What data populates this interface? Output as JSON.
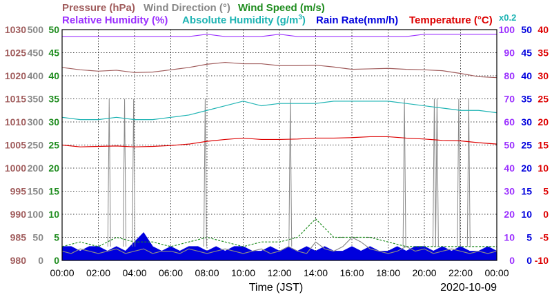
{
  "chart_data": {
    "type": "line",
    "date": "2020-10-09",
    "xlabel": "Time (JST)",
    "x_ticks": [
      "00:00",
      "02:00",
      "04:00",
      "06:00",
      "08:00",
      "10:00",
      "12:00",
      "14:00",
      "16:00",
      "18:00",
      "20:00",
      "22:00",
      "00:00"
    ],
    "grid": true,
    "legend": {
      "pressure": {
        "name": "Pressure (hPa)",
        "color": "#a05c5c"
      },
      "wind_direction": {
        "name": "Wind Direction (°)",
        "color": "#888888"
      },
      "wind_speed": {
        "name": "Wind Speed (m/s)",
        "color": "#1e8c1e"
      },
      "relative_humidity": {
        "name": "Relative Humidity (%)",
        "color": "#9b30ff"
      },
      "absolute_humidity": {
        "name": "Absolute Humidity (g/m",
        "sup": "3",
        "close": ")",
        "color": "#1fb4b4"
      },
      "rain_rate": {
        "name": "Rain Rate(mm/h)",
        "color": "#0000dd"
      },
      "temperature": {
        "name": "Temperature (°C)",
        "color": "#dd0000"
      },
      "factor": {
        "name": "x0.2",
        "color": "#1fb4b4"
      }
    },
    "axes": {
      "pressure": {
        "min": 980,
        "max": 1030,
        "ticks": [
          "980",
          "985",
          "990",
          "995",
          "1000",
          "1005",
          "1010",
          "1015",
          "1020",
          "1025",
          "1030"
        ]
      },
      "wind_direction": {
        "min": 0,
        "max": 500,
        "ticks": [
          "0",
          "50",
          "100",
          "150",
          "200",
          "250",
          "300",
          "350",
          "400",
          "450",
          "500"
        ]
      },
      "wind_speed": {
        "min": 0,
        "max": 50,
        "ticks": [
          "0",
          "5",
          "10",
          "15",
          "20",
          "25",
          "30",
          "35",
          "40",
          "45",
          "50"
        ]
      },
      "humidity": {
        "min": 0,
        "max": 100,
        "ticks": [
          "0",
          "10",
          "20",
          "30",
          "40",
          "50",
          "60",
          "70",
          "80",
          "90",
          "100"
        ]
      },
      "rain_rate": {
        "min": 0,
        "max": 50,
        "ticks": [
          "0",
          "5",
          "10",
          "15",
          "20",
          "25",
          "30",
          "35",
          "40",
          "45",
          "50"
        ]
      },
      "temperature": {
        "min": -10,
        "max": 40,
        "ticks": [
          "-10",
          "-5",
          "0",
          "5",
          "10",
          "15",
          "20",
          "25",
          "30",
          "35",
          "40"
        ]
      }
    },
    "series": [
      {
        "name": "Pressure (hPa)",
        "axis": "pressure",
        "color": "#a05c5c",
        "x": [
          0,
          1,
          2,
          3,
          4,
          5,
          6,
          7,
          8,
          9,
          10,
          11,
          12,
          13,
          14,
          15,
          16,
          17,
          18,
          19,
          20,
          21,
          22,
          23,
          24
        ],
        "values": [
          1021.8,
          1021.3,
          1021.0,
          1021.2,
          1020.7,
          1020.8,
          1021.3,
          1021.8,
          1022.5,
          1022.9,
          1022.6,
          1022.6,
          1022.2,
          1022.2,
          1022.3,
          1021.9,
          1021.4,
          1021.5,
          1021.6,
          1021.4,
          1021.3,
          1021.1,
          1020.5,
          1019.8,
          1019.6
        ]
      },
      {
        "name": "Relative Humidity (%)",
        "axis": "humidity",
        "color": "#9b30ff",
        "x": [
          0,
          1,
          2,
          3,
          4,
          5,
          6,
          7,
          8,
          9,
          10,
          11,
          12,
          13,
          14,
          15,
          16,
          17,
          18,
          19,
          20,
          21,
          22,
          23,
          24
        ],
        "values": [
          97,
          97,
          97,
          97,
          97,
          97,
          97,
          97,
          98,
          97,
          97,
          97,
          98,
          97,
          97,
          97,
          97,
          97,
          97,
          97,
          98,
          98,
          98,
          98,
          98
        ]
      },
      {
        "name": "Absolute Humidity",
        "axis": "humidity",
        "color": "#1fb4b4",
        "x": [
          0,
          1,
          2,
          3,
          4,
          5,
          6,
          7,
          8,
          9,
          10,
          11,
          12,
          13,
          14,
          15,
          16,
          17,
          18,
          19,
          20,
          21,
          22,
          23,
          24
        ],
        "values": [
          62,
          61,
          61,
          62,
          61,
          61,
          62,
          63,
          65,
          67,
          69,
          67,
          68,
          68,
          68,
          69,
          69,
          69,
          69,
          68,
          67,
          66,
          65,
          65,
          64
        ]
      },
      {
        "name": "Temperature (°C)",
        "axis": "temperature",
        "color": "#dd0000",
        "x": [
          0,
          1,
          2,
          3,
          4,
          5,
          6,
          7,
          8,
          9,
          10,
          11,
          12,
          13,
          14,
          15,
          16,
          17,
          18,
          19,
          20,
          21,
          22,
          23,
          24
        ],
        "values": [
          15.0,
          14.6,
          14.7,
          14.8,
          14.6,
          14.7,
          14.9,
          15.2,
          15.8,
          16.2,
          16.5,
          16.2,
          16.2,
          16.3,
          16.5,
          16.5,
          16.6,
          16.8,
          16.8,
          16.5,
          16.3,
          16.0,
          15.9,
          15.5,
          15.2
        ]
      },
      {
        "name": "Wind Direction (°)",
        "axis": "wind_direction",
        "color": "#888888",
        "x": [
          0,
          0.5,
          1,
          1.5,
          2,
          2.5,
          3,
          3.5,
          4,
          4.5,
          5,
          5.5,
          6,
          6.5,
          7,
          7.5,
          8,
          8.5,
          9,
          9.5,
          10,
          10.5,
          11,
          11.5,
          12,
          12.5,
          13,
          13.5,
          14,
          14.5,
          15,
          15.5,
          16,
          16.5,
          17,
          17.5,
          18,
          18.5,
          19,
          19.5,
          20,
          20.5,
          21,
          21.5,
          22,
          22.5,
          23,
          23.5,
          24
        ],
        "values": [
          20,
          15,
          25,
          20,
          15,
          20,
          25,
          15,
          20,
          25,
          15,
          20,
          20,
          15,
          25,
          20,
          15,
          20,
          25,
          20,
          15,
          20,
          25,
          15,
          20,
          30,
          20,
          15,
          40,
          25,
          20,
          30,
          50,
          40,
          25,
          20,
          15,
          20,
          30,
          20,
          25,
          15,
          20,
          25,
          20,
          15,
          20,
          15,
          20
        ]
      },
      {
        "name": "Wind Direction spikes (°)",
        "axis": "wind_direction",
        "color": "#888888",
        "x": [
          2.6,
          3.45,
          3.95,
          7.9,
          12.6,
          18.9,
          20.55,
          20.7,
          21.9,
          22.45
        ],
        "values": [
          350,
          350,
          350,
          350,
          350,
          350,
          350,
          350,
          350,
          350
        ]
      },
      {
        "name": "Wind Speed (m/s)",
        "axis": "wind_speed",
        "color": "#1e8c1e",
        "x": [
          0,
          1,
          2,
          3,
          4,
          5,
          6,
          7,
          8,
          9,
          10,
          11,
          12,
          13,
          14,
          15,
          16,
          17,
          18,
          19,
          20,
          21,
          22,
          23,
          24
        ],
        "values": [
          3,
          4,
          3,
          5,
          4,
          4,
          3,
          4,
          5,
          4,
          3,
          4,
          4,
          5,
          9,
          5,
          5,
          5,
          4,
          3,
          3,
          3,
          3,
          3,
          3
        ]
      },
      {
        "name": "Rain Rate(mm/h)",
        "axis": "rain_rate",
        "color": "#0000dd",
        "x": [
          0,
          0.5,
          1,
          1.5,
          2,
          2.5,
          3,
          3.5,
          4,
          4.5,
          5,
          5.5,
          6,
          6.5,
          7,
          7.5,
          8,
          8.5,
          9,
          9.5,
          10,
          10.5,
          11,
          11.5,
          12,
          12.5,
          13,
          13.5,
          14,
          14.5,
          15,
          15.5,
          16,
          16.5,
          17,
          17.5,
          18,
          18.5,
          19,
          19.5,
          20,
          20.5,
          21,
          21.5,
          22,
          22.5,
          23,
          23.5,
          24
        ],
        "values": [
          3,
          3,
          2,
          3,
          3,
          2,
          3,
          2,
          4,
          6,
          3,
          2,
          3,
          2,
          3,
          3,
          2,
          3,
          2,
          3,
          3,
          2,
          2,
          3,
          2,
          3,
          2,
          3,
          2,
          3,
          2,
          2,
          3,
          2,
          3,
          2,
          2,
          3,
          2,
          3,
          3,
          2,
          3,
          2,
          3,
          2,
          2,
          3,
          2
        ]
      }
    ]
  }
}
